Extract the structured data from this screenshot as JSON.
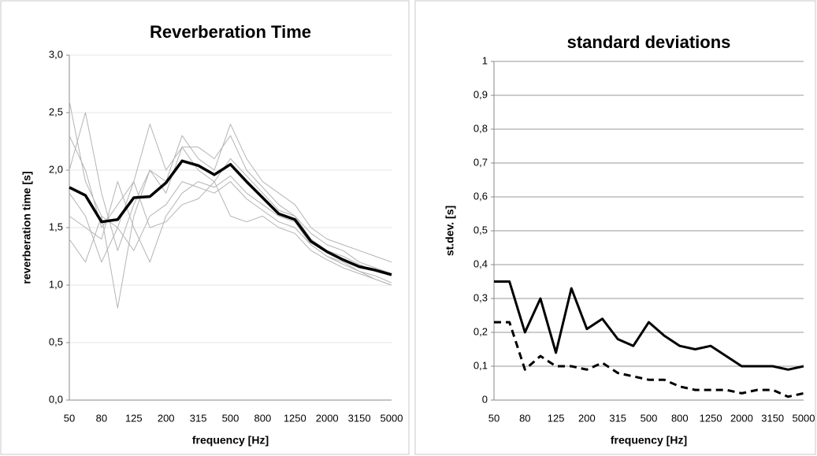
{
  "chart_data": [
    {
      "type": "line",
      "title": "Reverberation Time",
      "x_label": "frequency [Hz]",
      "y_label": "reverberation time [s]",
      "categories": [
        "50",
        null,
        "80",
        null,
        "125",
        null,
        "200",
        null,
        "315",
        null,
        "500",
        null,
        "800",
        null,
        "1250",
        null,
        "2000",
        null,
        "3150",
        null,
        "5000"
      ],
      "ylim": [
        0,
        3
      ],
      "yticks": [
        {
          "value": 0,
          "label": "0,0"
        },
        {
          "value": 0.5,
          "label": "0,5"
        },
        {
          "value": 1,
          "label": "1,0"
        },
        {
          "value": 1.5,
          "label": "1,5"
        },
        {
          "value": 2,
          "label": "2,0"
        },
        {
          "value": 2.5,
          "label": "2,5"
        },
        {
          "value": 3,
          "label": "3,0"
        }
      ],
      "grid": true,
      "series": [
        {
          "color": "#b4b4b4",
          "line_width": 1,
          "values": [
            2.3,
            2.0,
            1.5,
            1.7,
            1.9,
            2.4,
            2.0,
            2.2,
            2.2,
            2.1,
            2.3,
            2.0,
            1.85,
            1.7,
            1.6,
            1.45,
            1.35,
            1.3,
            1.2,
            1.15,
            1.1
          ]
        },
        {
          "color": "#b4b4b4",
          "line_width": 1,
          "values": [
            1.4,
            1.2,
            1.6,
            1.5,
            1.3,
            1.6,
            1.7,
            1.9,
            1.85,
            1.8,
            1.9,
            1.75,
            1.65,
            1.55,
            1.5,
            1.35,
            1.25,
            1.18,
            1.12,
            1.08,
            1.02
          ]
        },
        {
          "color": "#b4b4b4",
          "line_width": 1,
          "values": [
            2.0,
            2.5,
            1.8,
            1.3,
            1.7,
            2.0,
            1.8,
            2.2,
            2.0,
            1.9,
            2.1,
            1.95,
            1.8,
            1.65,
            1.6,
            1.4,
            1.3,
            1.25,
            1.18,
            1.12,
            1.08
          ]
        },
        {
          "color": "#b4b4b4",
          "line_width": 1,
          "values": [
            1.6,
            1.5,
            1.4,
            1.9,
            1.5,
            1.2,
            1.6,
            1.8,
            1.9,
            1.85,
            1.95,
            1.8,
            1.7,
            1.6,
            1.55,
            1.35,
            1.25,
            1.2,
            1.12,
            1.05,
            1.0
          ]
        },
        {
          "color": "#b4b4b4",
          "line_width": 1,
          "values": [
            2.6,
            1.9,
            1.6,
            0.8,
            1.6,
            2.0,
            1.9,
            2.3,
            2.1,
            2.0,
            2.4,
            2.1,
            1.9,
            1.8,
            1.7,
            1.5,
            1.4,
            1.35,
            1.3,
            1.25,
            1.2
          ]
        },
        {
          "color": "#b4b4b4",
          "line_width": 1,
          "values": [
            1.8,
            1.6,
            1.2,
            1.5,
            1.9,
            1.5,
            1.55,
            1.7,
            1.75,
            1.9,
            1.6,
            1.55,
            1.6,
            1.5,
            1.45,
            1.3,
            1.22,
            1.15,
            1.1,
            1.05,
            1.0
          ]
        },
        {
          "color": "#000000",
          "line_width": 3.5,
          "values": [
            1.85,
            1.78,
            1.55,
            1.57,
            1.76,
            1.77,
            1.89,
            2.08,
            2.04,
            1.96,
            2.05,
            1.9,
            1.76,
            1.62,
            1.57,
            1.38,
            1.29,
            1.22,
            1.16,
            1.13,
            1.09
          ]
        }
      ]
    },
    {
      "type": "line",
      "title": "standard deviations",
      "x_label": "frequency [Hz]",
      "y_label": "st.dev. [s]",
      "categories": [
        "50",
        null,
        "80",
        null,
        "125",
        null,
        "200",
        null,
        "315",
        null,
        "500",
        null,
        "800",
        null,
        "1250",
        null,
        "2000",
        null,
        "3150",
        null,
        "5000"
      ],
      "ylim": [
        0,
        1
      ],
      "yticks": [
        0,
        {
          "value": 0.1,
          "label": "0,1"
        },
        {
          "value": 0.2,
          "label": "0,2"
        },
        {
          "value": 0.3,
          "label": "0,3"
        },
        {
          "value": 0.4,
          "label": "0,4"
        },
        {
          "value": 0.5,
          "label": "0,5"
        },
        {
          "value": 0.6,
          "label": "0,6"
        },
        {
          "value": 0.7,
          "label": "0,7"
        },
        {
          "value": 0.8,
          "label": "0,8"
        },
        {
          "value": 0.9,
          "label": "0,9"
        },
        1
      ],
      "grid": true,
      "series": [
        {
          "color": "#000000",
          "line_width": 3,
          "dashed": false,
          "values": [
            0.35,
            0.35,
            0.2,
            0.3,
            0.14,
            0.33,
            0.21,
            0.24,
            0.18,
            0.16,
            0.23,
            0.19,
            0.16,
            0.15,
            0.16,
            0.13,
            0.1,
            0.1,
            0.1,
            0.09,
            0.1
          ]
        },
        {
          "color": "#000000",
          "line_width": 3,
          "dashed": true,
          "values": [
            0.23,
            0.23,
            0.09,
            0.13,
            0.1,
            0.1,
            0.09,
            0.11,
            0.08,
            0.07,
            0.06,
            0.06,
            0.04,
            0.03,
            0.03,
            0.03,
            0.02,
            0.03,
            0.03,
            0.01,
            0.02
          ]
        }
      ]
    }
  ]
}
